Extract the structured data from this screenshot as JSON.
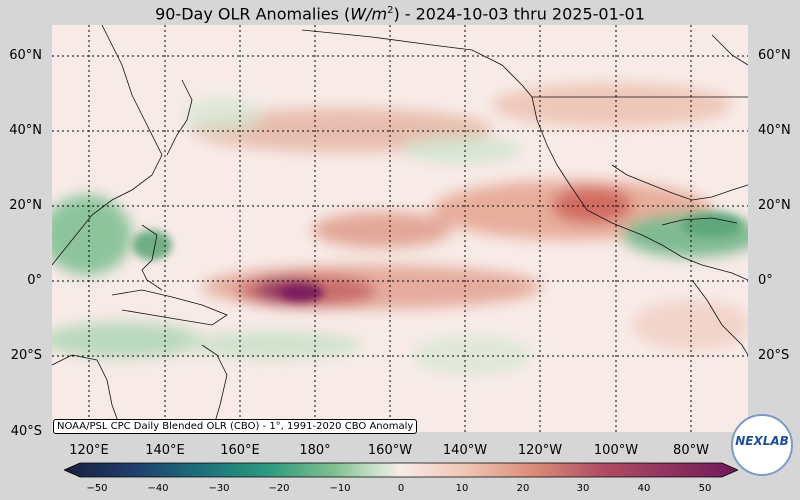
{
  "title": {
    "prefix": "90-Day OLR Anomalies (",
    "unit_base": "W/m",
    "unit_exp": "2",
    "suffix": ") - 2024-10-03 thru 2025-01-01"
  },
  "lat_labels": [
    "60°N",
    "40°N",
    "20°N",
    "0°",
    "20°S",
    "40°S"
  ],
  "lon_labels": [
    "120°E",
    "140°E",
    "160°E",
    "180°",
    "160°W",
    "140°W",
    "120°W",
    "100°W",
    "80°W"
  ],
  "credit": "NOAA/PSL CPC Daily Blended OLR (CBO) - 1°, 1991-2020 CBO Anomaly",
  "colorbar": {
    "ticks": [
      "−50",
      "−40",
      "−30",
      "−20",
      "−10",
      "0",
      "10",
      "20",
      "30",
      "40",
      "50"
    ],
    "colors": [
      "#1a1f3b",
      "#1f3d6b",
      "#1c6e7a",
      "#2b9a7e",
      "#7fbf8e",
      "#d3e6d2",
      "#f8ebe7",
      "#efc3b1",
      "#d98a76",
      "#b04b63",
      "#6e1a5a"
    ]
  },
  "logo": {
    "text": "NEXLAB"
  },
  "colors": {
    "positive": "#c75a4a",
    "strong_positive": "#7a1f5e",
    "negative": "#3f9a6c",
    "neutral": "#f8ebe7"
  }
}
